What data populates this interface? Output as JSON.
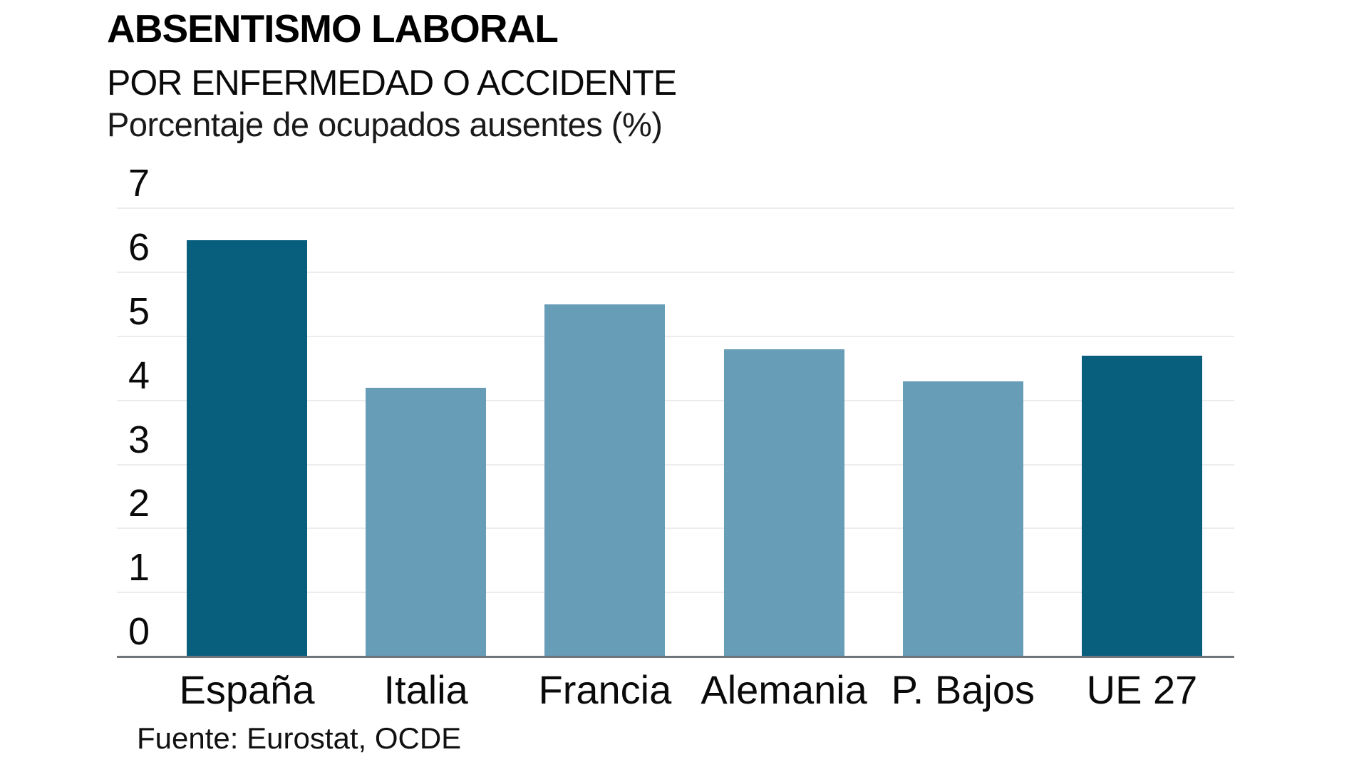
{
  "chart_data": {
    "type": "bar",
    "title": "ABSENTISMO LABORAL",
    "subtitle": "POR ENFERMEDAD O ACCIDENTE",
    "ylabel": "Porcentaje de ocupados ausentes (%)",
    "xlabel": "",
    "categories": [
      "España",
      "Italia",
      "Francia",
      "Alemania",
      "P. Bajos",
      "UE 27"
    ],
    "values": [
      6.5,
      4.2,
      5.5,
      4.8,
      4.3,
      4.7
    ],
    "bar_colors": [
      "#075e7d",
      "#689db8",
      "#689db8",
      "#689db8",
      "#689db8",
      "#075e7d"
    ],
    "highlight_color": "#075e7d",
    "base_color": "#689db8",
    "ylim": [
      0,
      7
    ],
    "yticks": [
      0,
      1,
      2,
      3,
      4,
      5,
      6,
      7
    ],
    "grid": "horizontal",
    "gridline_color": "#ececec",
    "axis_line_color": "#71767b",
    "legend": "none",
    "source": "Fuente: Eurostat, OCDE"
  }
}
